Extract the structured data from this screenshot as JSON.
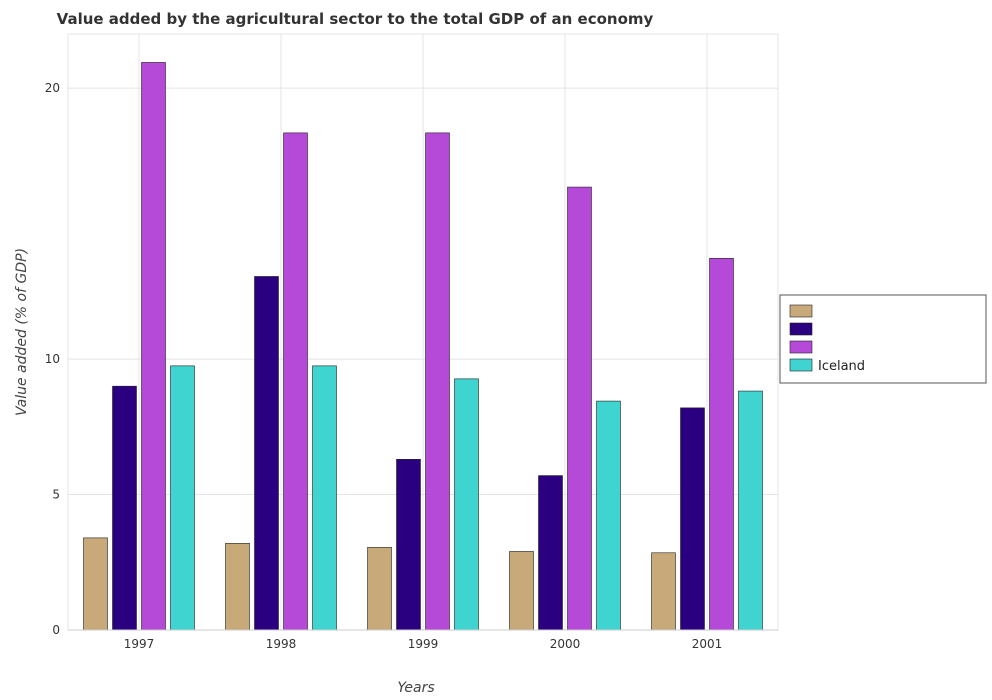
{
  "chart_data": {
    "type": "bar",
    "title": "Value added by the agricultural sector to the total GDP of an economy",
    "xlabel": "Years",
    "ylabel": "Value added (% of GDP)",
    "categories": [
      "1997",
      "1998",
      "1999",
      "2000",
      "2001"
    ],
    "ylim": [
      0,
      22
    ],
    "yticks": [
      0,
      5,
      10,
      20
    ],
    "grid": true,
    "legend_position": "right",
    "series": [
      {
        "name": "",
        "color": "#c8a97a",
        "values": [
          3.4,
          3.2,
          3.05,
          2.9,
          2.85
        ]
      },
      {
        "name": "",
        "color": "#2a0080",
        "values": [
          9.0,
          13.05,
          6.3,
          5.7,
          8.2
        ]
      },
      {
        "name": "",
        "color": "#b64ad8",
        "values": [
          20.95,
          18.35,
          18.35,
          16.35,
          13.72
        ]
      },
      {
        "name": "Iceland",
        "color": "#3fd4cf",
        "values": [
          9.75,
          9.75,
          9.27,
          8.45,
          8.82
        ]
      }
    ]
  }
}
